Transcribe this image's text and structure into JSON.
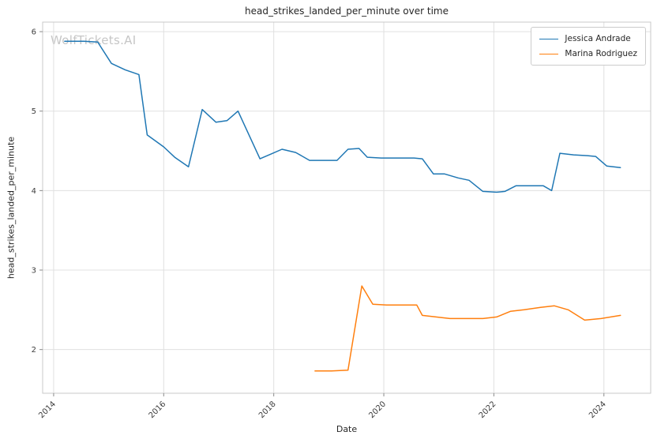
{
  "watermark": "WolfTickets.AI",
  "chart_data": {
    "type": "line",
    "title": "head_strikes_landed_per_minute over time",
    "xlabel": "Date",
    "ylabel": "head_strikes_landed_per_minute",
    "x_ticks": [
      2014,
      2016,
      2018,
      2020,
      2022,
      2024
    ],
    "y_ticks": [
      2,
      3,
      4,
      5,
      6
    ],
    "xlim": [
      2013.8,
      2024.85
    ],
    "ylim": [
      1.45,
      6.12
    ],
    "grid": true,
    "legend_position": "upper right",
    "series": [
      {
        "name": "Jessica Andrade",
        "color": "#1f77b4",
        "points": [
          [
            2014.2,
            5.88
          ],
          [
            2014.55,
            5.88
          ],
          [
            2014.8,
            5.87
          ],
          [
            2015.05,
            5.6
          ],
          [
            2015.3,
            5.52
          ],
          [
            2015.55,
            5.46
          ],
          [
            2015.7,
            4.7
          ],
          [
            2016.0,
            4.55
          ],
          [
            2016.2,
            4.42
          ],
          [
            2016.45,
            4.3
          ],
          [
            2016.7,
            5.02
          ],
          [
            2016.95,
            4.86
          ],
          [
            2017.15,
            4.88
          ],
          [
            2017.35,
            5.0
          ],
          [
            2017.75,
            4.4
          ],
          [
            2017.95,
            4.46
          ],
          [
            2018.15,
            4.52
          ],
          [
            2018.4,
            4.48
          ],
          [
            2018.65,
            4.38
          ],
          [
            2018.9,
            4.38
          ],
          [
            2019.15,
            4.38
          ],
          [
            2019.35,
            4.52
          ],
          [
            2019.55,
            4.53
          ],
          [
            2019.7,
            4.42
          ],
          [
            2019.95,
            4.41
          ],
          [
            2020.25,
            4.41
          ],
          [
            2020.55,
            4.41
          ],
          [
            2020.7,
            4.4
          ],
          [
            2020.9,
            4.21
          ],
          [
            2021.1,
            4.21
          ],
          [
            2021.35,
            4.16
          ],
          [
            2021.55,
            4.13
          ],
          [
            2021.8,
            3.99
          ],
          [
            2022.05,
            3.98
          ],
          [
            2022.2,
            3.99
          ],
          [
            2022.4,
            4.06
          ],
          [
            2022.65,
            4.06
          ],
          [
            2022.9,
            4.06
          ],
          [
            2023.05,
            4.0
          ],
          [
            2023.2,
            4.47
          ],
          [
            2023.45,
            4.45
          ],
          [
            2023.7,
            4.44
          ],
          [
            2023.85,
            4.43
          ],
          [
            2024.05,
            4.31
          ],
          [
            2024.3,
            4.29
          ]
        ]
      },
      {
        "name": "Marina Rodriguez",
        "color": "#ff7f0e",
        "points": [
          [
            2018.75,
            1.73
          ],
          [
            2019.05,
            1.73
          ],
          [
            2019.35,
            1.74
          ],
          [
            2019.6,
            2.8
          ],
          [
            2019.8,
            2.57
          ],
          [
            2020.05,
            2.56
          ],
          [
            2020.35,
            2.56
          ],
          [
            2020.6,
            2.56
          ],
          [
            2020.7,
            2.43
          ],
          [
            2020.95,
            2.41
          ],
          [
            2021.2,
            2.39
          ],
          [
            2021.5,
            2.39
          ],
          [
            2021.8,
            2.39
          ],
          [
            2022.05,
            2.41
          ],
          [
            2022.3,
            2.48
          ],
          [
            2022.55,
            2.5
          ],
          [
            2022.85,
            2.53
          ],
          [
            2023.1,
            2.55
          ],
          [
            2023.35,
            2.5
          ],
          [
            2023.65,
            2.37
          ],
          [
            2023.95,
            2.39
          ],
          [
            2024.3,
            2.43
          ]
        ]
      }
    ]
  }
}
